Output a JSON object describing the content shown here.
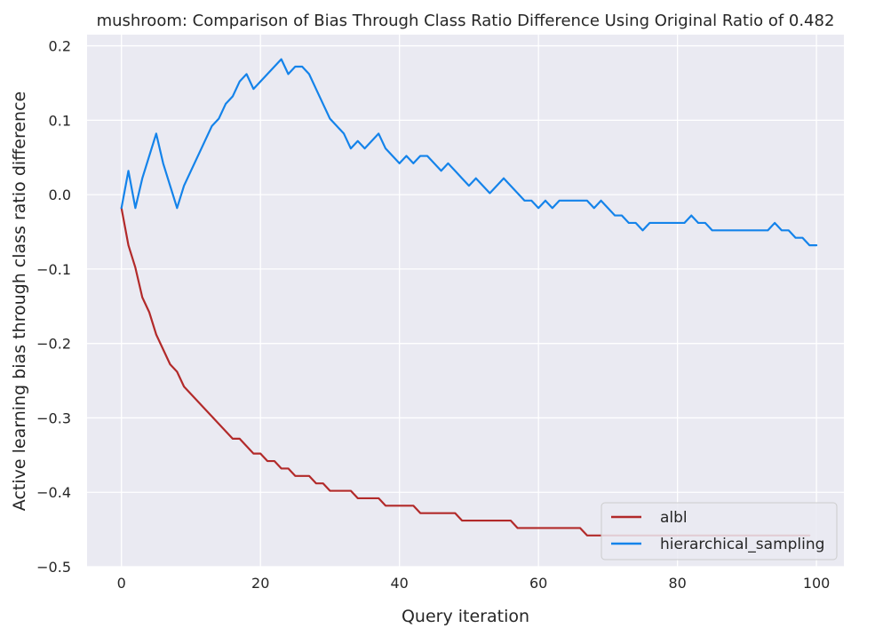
{
  "chart_data": {
    "type": "line",
    "title": "mushroom: Comparison of Bias Through Class Ratio Difference Using Original Ratio of 0.482",
    "xlabel": "Query iteration",
    "ylabel": "Active learning bias through class ratio difference",
    "xlim": [
      -4.95,
      103.95
    ],
    "ylim": [
      -0.5,
      0.215
    ],
    "xticks": [
      0,
      20,
      40,
      60,
      80,
      100
    ],
    "yticks": [
      -0.5,
      -0.4,
      -0.3,
      -0.2,
      -0.1,
      0.0,
      0.1,
      0.2
    ],
    "grid": true,
    "legend_position": "bottom-right",
    "series": [
      {
        "name": "albl",
        "color": "#b22a2a",
        "values": [
          -0.018,
          -0.068,
          -0.098,
          -0.138,
          -0.158,
          -0.188,
          -0.208,
          -0.228,
          -0.238,
          -0.258,
          -0.268,
          -0.278,
          -0.288,
          -0.298,
          -0.308,
          -0.318,
          -0.328,
          -0.328,
          -0.338,
          -0.348,
          -0.348,
          -0.358,
          -0.358,
          -0.368,
          -0.368,
          -0.378,
          -0.378,
          -0.378,
          -0.388,
          -0.388,
          -0.398,
          -0.398,
          -0.398,
          -0.398,
          -0.408,
          -0.408,
          -0.408,
          -0.408,
          -0.418,
          -0.418,
          -0.418,
          -0.418,
          -0.418,
          -0.428,
          -0.428,
          -0.428,
          -0.428,
          -0.428,
          -0.428,
          -0.438,
          -0.438,
          -0.438,
          -0.438,
          -0.438,
          -0.438,
          -0.438,
          -0.438,
          -0.448,
          -0.448,
          -0.448,
          -0.448,
          -0.448,
          -0.448,
          -0.448,
          -0.448,
          -0.448,
          -0.448,
          -0.458,
          -0.458,
          -0.458,
          -0.458,
          -0.458,
          -0.458,
          -0.458,
          -0.458,
          -0.458,
          -0.458,
          -0.458,
          -0.458,
          -0.458,
          -0.458,
          -0.458,
          -0.458,
          -0.458,
          -0.458,
          -0.458,
          -0.458,
          -0.458,
          -0.458,
          -0.458,
          -0.458,
          -0.458,
          -0.458,
          -0.458,
          -0.458,
          -0.458,
          -0.458,
          -0.458,
          -0.458,
          -0.458
        ]
      },
      {
        "name": "hierarchical_sampling",
        "color": "#1483ea",
        "values": [
          -0.018,
          0.032,
          -0.018,
          0.022,
          0.052,
          0.082,
          0.042,
          0.012,
          -0.018,
          0.012,
          0.032,
          0.052,
          0.072,
          0.092,
          0.102,
          0.122,
          0.132,
          0.152,
          0.162,
          0.142,
          0.152,
          0.162,
          0.172,
          0.182,
          0.162,
          0.172,
          0.172,
          0.162,
          0.142,
          0.122,
          0.102,
          0.092,
          0.082,
          0.062,
          0.072,
          0.062,
          0.072,
          0.082,
          0.062,
          0.052,
          0.042,
          0.052,
          0.042,
          0.052,
          0.052,
          0.042,
          0.032,
          0.042,
          0.032,
          0.022,
          0.012,
          0.022,
          0.012,
          0.002,
          0.012,
          0.022,
          0.012,
          0.002,
          -0.008,
          -0.008,
          -0.018,
          -0.008,
          -0.018,
          -0.008,
          -0.008,
          -0.008,
          -0.008,
          -0.008,
          -0.018,
          -0.008,
          -0.018,
          -0.028,
          -0.028,
          -0.038,
          -0.038,
          -0.048,
          -0.038,
          -0.038,
          -0.038,
          -0.038,
          -0.038,
          -0.038,
          -0.028,
          -0.038,
          -0.038,
          -0.048,
          -0.048,
          -0.048,
          -0.048,
          -0.048,
          -0.048,
          -0.048,
          -0.048,
          -0.048,
          -0.038,
          -0.048,
          -0.048,
          -0.058,
          -0.058,
          -0.068,
          -0.068
        ]
      }
    ]
  }
}
